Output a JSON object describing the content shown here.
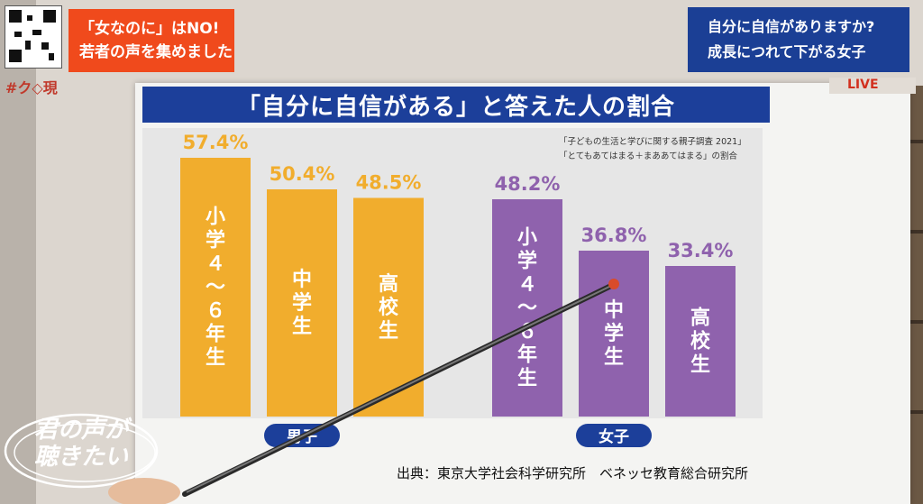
{
  "overlay": {
    "corner_tag": "#ク◇現",
    "headline_line1": "「女なのに」はNO!",
    "headline_line2": "若者の声を集めました",
    "topic_line1": "自分に自信がありますか?",
    "topic_line2": "成長につれて下がる女子",
    "live_label": "LIVE",
    "logo_line1": "君の声が",
    "logo_line2": "聴きたい"
  },
  "colors": {
    "male": "#f1ad2d",
    "female": "#8f62ad",
    "group_badge": "#1c3f9a",
    "title_bg": "#1c3f9a"
  },
  "chart_data": {
    "type": "bar",
    "title": "「自分に自信がある」と答えた人の割合",
    "notes": [
      "「子どもの生活と学びに関する親子調査 2021」",
      "「とてもあてはまる＋まああてはまる」の割合"
    ],
    "unit": "%",
    "groups": [
      {
        "name": "男子",
        "color": "#f1ad2d",
        "bars": [
          {
            "label": "小学４〜６年生",
            "value": 57.4
          },
          {
            "label": "中学生",
            "value": 50.4
          },
          {
            "label": "高校生",
            "value": 48.5
          }
        ]
      },
      {
        "name": "女子",
        "color": "#8f62ad",
        "bars": [
          {
            "label": "小学４〜６年生",
            "value": 48.2
          },
          {
            "label": "中学生",
            "value": 36.8
          },
          {
            "label": "高校生",
            "value": 33.4
          }
        ]
      }
    ],
    "source": "出典：東京大学社会科学研究所　ベネッセ教育総合研究所"
  }
}
